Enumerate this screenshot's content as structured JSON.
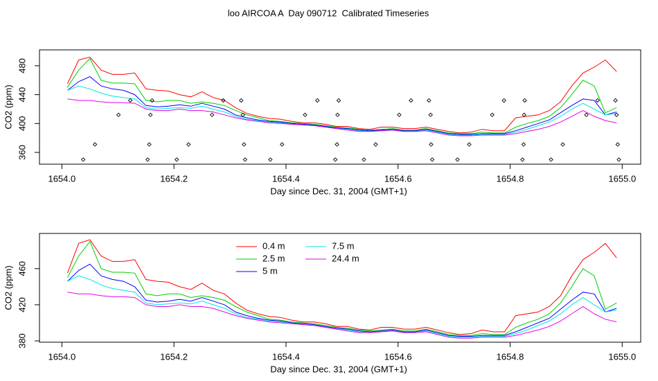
{
  "chart_data": [
    {
      "type": "line",
      "title": "loo AIRCOA A  Day 090712  Calibrated Timeseries",
      "xlabel": "Day since Dec. 31, 2004 (GMT+1)",
      "ylabel": "CO2 (ppm)",
      "xlim": [
        1653.96,
        1655.033
      ],
      "ylim": [
        343.7,
        502
      ],
      "xticks": [
        {
          "value": 1654.0,
          "label": "1654.0"
        },
        {
          "value": 1654.2,
          "label": "1654.2"
        },
        {
          "value": 1654.4,
          "label": "1654.4"
        },
        {
          "value": 1654.6,
          "label": "1654.6"
        },
        {
          "value": 1654.8,
          "label": "1654.8"
        },
        {
          "value": 1655.0,
          "label": "1655.0"
        }
      ],
      "yticks": [
        360,
        400,
        440,
        480
      ],
      "x": [
        1654.01,
        1654.03,
        1654.05,
        1654.07,
        1654.09,
        1654.11,
        1654.13,
        1654.15,
        1654.17,
        1654.19,
        1654.21,
        1654.23,
        1654.25,
        1654.27,
        1654.29,
        1654.31,
        1654.33,
        1654.35,
        1654.37,
        1654.39,
        1654.41,
        1654.43,
        1654.45,
        1654.47,
        1654.49,
        1654.51,
        1654.53,
        1654.55,
        1654.57,
        1654.59,
        1654.61,
        1654.63,
        1654.65,
        1654.67,
        1654.69,
        1654.71,
        1654.73,
        1654.75,
        1654.77,
        1654.79,
        1654.81,
        1654.83,
        1654.85,
        1654.87,
        1654.89,
        1654.91,
        1654.93,
        1654.95,
        1654.97,
        1654.99
      ],
      "series": [
        {
          "color": "#ff0000",
          "values": [
            455,
            488,
            492,
            474,
            468,
            468,
            470,
            448,
            446,
            445,
            440,
            437,
            444,
            436,
            432,
            422,
            414,
            410,
            407,
            406,
            403,
            401,
            401,
            399,
            396,
            396,
            393,
            392,
            395,
            395,
            393,
            393,
            395,
            392,
            389,
            387,
            388,
            392,
            390,
            390,
            408,
            410,
            412,
            418,
            430,
            452,
            470,
            478,
            488,
            472
          ]
        },
        {
          "color": "#00cd00",
          "values": [
            450,
            474,
            490,
            460,
            456,
            456,
            455,
            432,
            430,
            432,
            432,
            428,
            430,
            428,
            425,
            418,
            412,
            408,
            404,
            403,
            401,
            400,
            399,
            397,
            395,
            394,
            392,
            391,
            392,
            393,
            391,
            391,
            393,
            390,
            387,
            386,
            386,
            388,
            387,
            387,
            395,
            400,
            404,
            410,
            422,
            440,
            460,
            452,
            415,
            422
          ]
        },
        {
          "color": "#0000ff",
          "values": [
            446,
            458,
            465,
            452,
            448,
            446,
            440,
            425,
            423,
            424,
            426,
            424,
            428,
            424,
            420,
            412,
            408,
            405,
            403,
            402,
            400,
            399,
            398,
            396,
            394,
            393,
            391,
            390,
            391,
            392,
            390,
            390,
            392,
            389,
            386,
            385,
            385,
            386,
            386,
            386,
            390,
            395,
            400,
            405,
            415,
            425,
            434,
            432,
            412,
            416
          ]
        },
        {
          "color": "#00e5e5",
          "values": [
            446,
            452,
            448,
            442,
            438,
            436,
            434,
            422,
            420,
            421,
            422,
            421,
            424,
            420,
            416,
            410,
            406,
            404,
            402,
            401,
            399,
            398,
            397,
            395,
            393,
            392,
            390,
            389,
            390,
            391,
            389,
            389,
            391,
            388,
            385,
            384,
            384,
            385,
            385,
            385,
            388,
            392,
            397,
            402,
            410,
            420,
            428,
            420,
            412,
            414
          ]
        },
        {
          "color": "#e500e5",
          "values": [
            434,
            432,
            432,
            430,
            429,
            429,
            428,
            420,
            418,
            418,
            420,
            418,
            418,
            416,
            412,
            408,
            405,
            403,
            401,
            400,
            399,
            398,
            397,
            395,
            393,
            391,
            389,
            389,
            390,
            391,
            389,
            389,
            390,
            387,
            384,
            383,
            383,
            384,
            384,
            384,
            386,
            389,
            392,
            396,
            402,
            410,
            418,
            410,
            404,
            401
          ]
        }
      ],
      "points": {
        "color": "#000000",
        "x": [
          1654.038,
          1654.059,
          1654.101,
          1654.122,
          1654.153,
          1654.156,
          1654.158,
          1654.161,
          1654.205,
          1654.226,
          1654.268,
          1654.288,
          1654.32,
          1654.323,
          1654.325,
          1654.327,
          1654.372,
          1654.393,
          1654.434,
          1654.456,
          1654.488,
          1654.491,
          1654.492,
          1654.494,
          1654.539,
          1654.56,
          1654.602,
          1654.623,
          1654.655,
          1654.658,
          1654.659,
          1654.661,
          1654.706,
          1654.727,
          1654.768,
          1654.789,
          1654.826,
          1654.825,
          1654.824,
          1654.822,
          1654.873,
          1654.894,
          1654.936,
          1654.956,
          1654.988,
          1654.99,
          1654.992,
          1654.994
        ],
        "y": [
          350,
          371,
          412,
          432,
          350,
          371,
          412,
          432,
          350,
          371,
          412,
          432,
          432,
          412,
          371,
          350,
          350,
          371,
          412,
          432,
          350,
          371,
          412,
          432,
          350,
          371,
          412,
          432,
          432,
          412,
          371,
          350,
          350,
          371,
          412,
          432,
          432,
          412,
          371,
          350,
          350,
          371,
          412,
          432,
          432,
          412,
          371,
          350
        ]
      }
    },
    {
      "type": "line",
      "xlabel": "Day since Dec. 31, 2004 (GMT+1)",
      "ylabel": "CO2 (ppm)",
      "xlim": [
        1653.96,
        1655.033
      ],
      "ylim": [
        378.5,
        499
      ],
      "xticks": [
        {
          "value": 1654.0,
          "label": "1654.0"
        },
        {
          "value": 1654.2,
          "label": "1654.2"
        },
        {
          "value": 1654.4,
          "label": "1654.4"
        },
        {
          "value": 1654.6,
          "label": "1654.6"
        },
        {
          "value": 1654.8,
          "label": "1654.8"
        },
        {
          "value": 1655.0,
          "label": "1655.0"
        }
      ],
      "yticks": [
        380,
        420,
        460
      ],
      "legend": "top",
      "x": [
        1654.01,
        1654.03,
        1654.05,
        1654.07,
        1654.09,
        1654.11,
        1654.13,
        1654.15,
        1654.17,
        1654.19,
        1654.21,
        1654.23,
        1654.25,
        1654.27,
        1654.29,
        1654.31,
        1654.33,
        1654.35,
        1654.37,
        1654.39,
        1654.41,
        1654.43,
        1654.45,
        1654.47,
        1654.49,
        1654.51,
        1654.53,
        1654.55,
        1654.57,
        1654.59,
        1654.61,
        1654.63,
        1654.65,
        1654.67,
        1654.69,
        1654.71,
        1654.73,
        1654.75,
        1654.77,
        1654.79,
        1654.81,
        1654.83,
        1654.85,
        1654.87,
        1654.89,
        1654.91,
        1654.93,
        1654.95,
        1654.97,
        1654.99
      ],
      "series": [
        {
          "name": "0.4 m",
          "color": "#ff0000",
          "values": [
            455,
            488,
            492,
            474,
            468,
            468,
            470,
            448,
            446,
            445,
            440,
            437,
            444,
            436,
            432,
            422,
            414,
            410,
            407,
            406,
            403,
            401,
            401,
            399,
            396,
            396,
            393,
            392,
            395,
            395,
            393,
            393,
            395,
            392,
            389,
            387,
            388,
            392,
            390,
            390,
            408,
            410,
            412,
            418,
            430,
            452,
            470,
            478,
            488,
            472
          ]
        },
        {
          "name": "2.5 m",
          "color": "#00cd00",
          "values": [
            450,
            474,
            490,
            460,
            456,
            456,
            455,
            432,
            430,
            432,
            432,
            428,
            430,
            428,
            425,
            418,
            412,
            408,
            404,
            403,
            401,
            400,
            399,
            397,
            395,
            394,
            392,
            391,
            392,
            393,
            391,
            391,
            393,
            390,
            387,
            386,
            386,
            388,
            387,
            387,
            395,
            400,
            404,
            410,
            422,
            440,
            460,
            452,
            415,
            422
          ]
        },
        {
          "name": "5 m",
          "color": "#0000ff",
          "values": [
            446,
            458,
            465,
            452,
            448,
            446,
            440,
            425,
            423,
            424,
            426,
            424,
            428,
            424,
            420,
            412,
            408,
            405,
            403,
            402,
            400,
            399,
            398,
            396,
            394,
            393,
            391,
            390,
            391,
            392,
            390,
            390,
            392,
            389,
            386,
            385,
            385,
            386,
            386,
            386,
            390,
            395,
            400,
            405,
            415,
            425,
            434,
            432,
            412,
            416
          ]
        },
        {
          "name": "7.5 m",
          "color": "#00e5e5",
          "values": [
            446,
            452,
            448,
            442,
            438,
            436,
            434,
            422,
            420,
            421,
            422,
            421,
            424,
            420,
            416,
            410,
            406,
            404,
            402,
            401,
            399,
            398,
            397,
            395,
            393,
            392,
            390,
            389,
            390,
            391,
            389,
            389,
            391,
            388,
            385,
            384,
            384,
            385,
            385,
            385,
            388,
            392,
            397,
            402,
            410,
            420,
            428,
            420,
            412,
            414
          ]
        },
        {
          "name": "24.4 m",
          "color": "#e500e5",
          "values": [
            434,
            432,
            432,
            430,
            429,
            429,
            428,
            420,
            418,
            418,
            420,
            418,
            418,
            416,
            412,
            408,
            405,
            403,
            401,
            400,
            399,
            398,
            397,
            395,
            393,
            391,
            389,
            389,
            390,
            391,
            389,
            389,
            390,
            387,
            384,
            383,
            383,
            384,
            384,
            384,
            386,
            389,
            392,
            396,
            402,
            410,
            418,
            410,
            404,
            401
          ]
        }
      ]
    }
  ]
}
